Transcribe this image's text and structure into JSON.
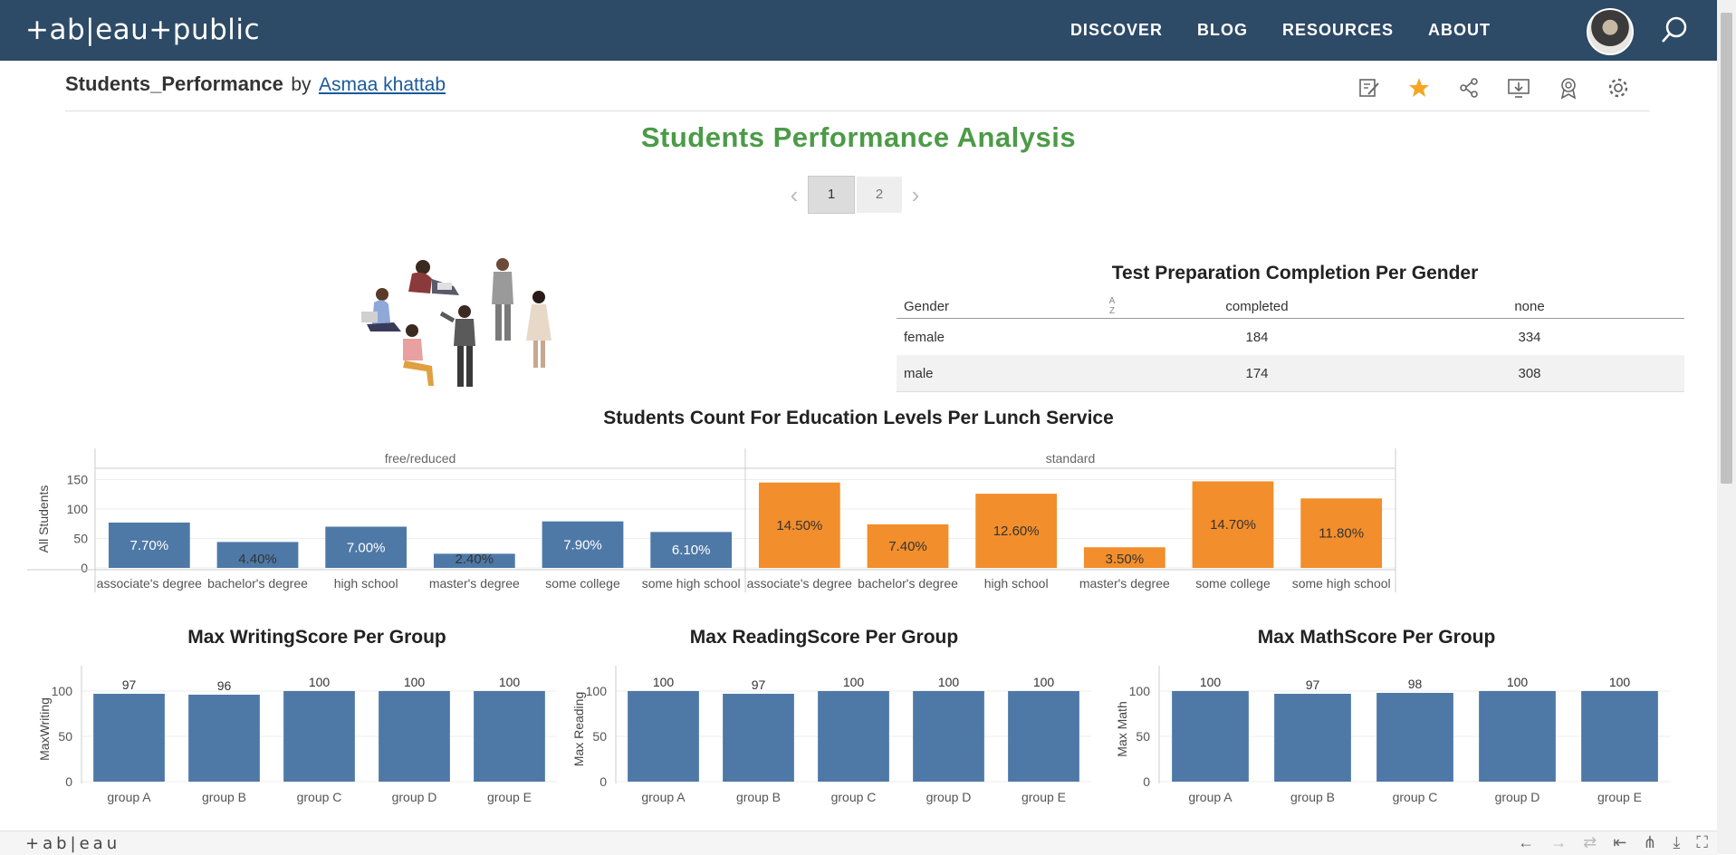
{
  "nav": {
    "logo": "+ab|eau+public",
    "links": [
      "DISCOVER",
      "BLOG",
      "RESOURCES",
      "ABOUT"
    ]
  },
  "viz": {
    "title": "Students_Performance",
    "by": "by",
    "author": "Asmaa khattab",
    "dashboard_title": "Students Performance Analysis",
    "pages": [
      "1",
      "2"
    ],
    "active_page": "1"
  },
  "colors": {
    "nav_bg": "#2d4a66",
    "title_green": "#4b9b47",
    "blue": "#4e79a7",
    "orange": "#f28e2b",
    "star": "#f5a623"
  },
  "table": {
    "title": "Test Preparation Completion Per Gender",
    "headers": [
      "Gender",
      "completed",
      "none"
    ],
    "rows": [
      [
        "female",
        "184",
        "334"
      ],
      [
        "male",
        "174",
        "308"
      ]
    ]
  },
  "chart_data": [
    {
      "type": "bar",
      "title": "Students Count For Education Levels Per Lunch Service",
      "ylabel": "All Students",
      "ylim": [
        0,
        160
      ],
      "yticks": [
        0,
        50,
        100,
        150
      ],
      "panels": [
        "free/reduced",
        "standard"
      ],
      "categories": [
        "associate's degree",
        "bachelor's degree",
        "high school",
        "master's degree",
        "some college",
        "some high school"
      ],
      "series": [
        {
          "name": "free/reduced",
          "values": [
            77,
            44,
            70,
            24,
            79,
            61
          ],
          "labels": [
            "7.70%",
            "4.40%",
            "7.00%",
            "2.40%",
            "7.90%",
            "6.10%"
          ]
        },
        {
          "name": "standard",
          "values": [
            145,
            74,
            126,
            35,
            147,
            118
          ],
          "labels": [
            "14.50%",
            "7.40%",
            "12.60%",
            "3.50%",
            "14.70%",
            "11.80%"
          ]
        }
      ]
    },
    {
      "type": "bar",
      "title": "Max WritingScore Per Group",
      "ylabel": "MaxWriting",
      "ylim": [
        0,
        105
      ],
      "yticks": [
        0,
        50,
        100
      ],
      "categories": [
        "group A",
        "group B",
        "group C",
        "group D",
        "group E"
      ],
      "values": [
        97,
        96,
        100,
        100,
        100
      ]
    },
    {
      "type": "bar",
      "title": "Max ReadingScore Per Group",
      "ylabel": "Max Reading",
      "ylim": [
        0,
        105
      ],
      "yticks": [
        0,
        50,
        100
      ],
      "categories": [
        "group A",
        "group B",
        "group C",
        "group D",
        "group E"
      ],
      "values": [
        100,
        97,
        100,
        100,
        100
      ]
    },
    {
      "type": "bar",
      "title": "Max MathScore Per Group",
      "ylabel": "Max Math",
      "ylim": [
        0,
        105
      ],
      "yticks": [
        0,
        50,
        100
      ],
      "categories": [
        "group A",
        "group B",
        "group C",
        "group D",
        "group E"
      ],
      "values": [
        100,
        97,
        98,
        100,
        100
      ]
    }
  ],
  "bottom": {
    "logo": "+ab|eau"
  }
}
